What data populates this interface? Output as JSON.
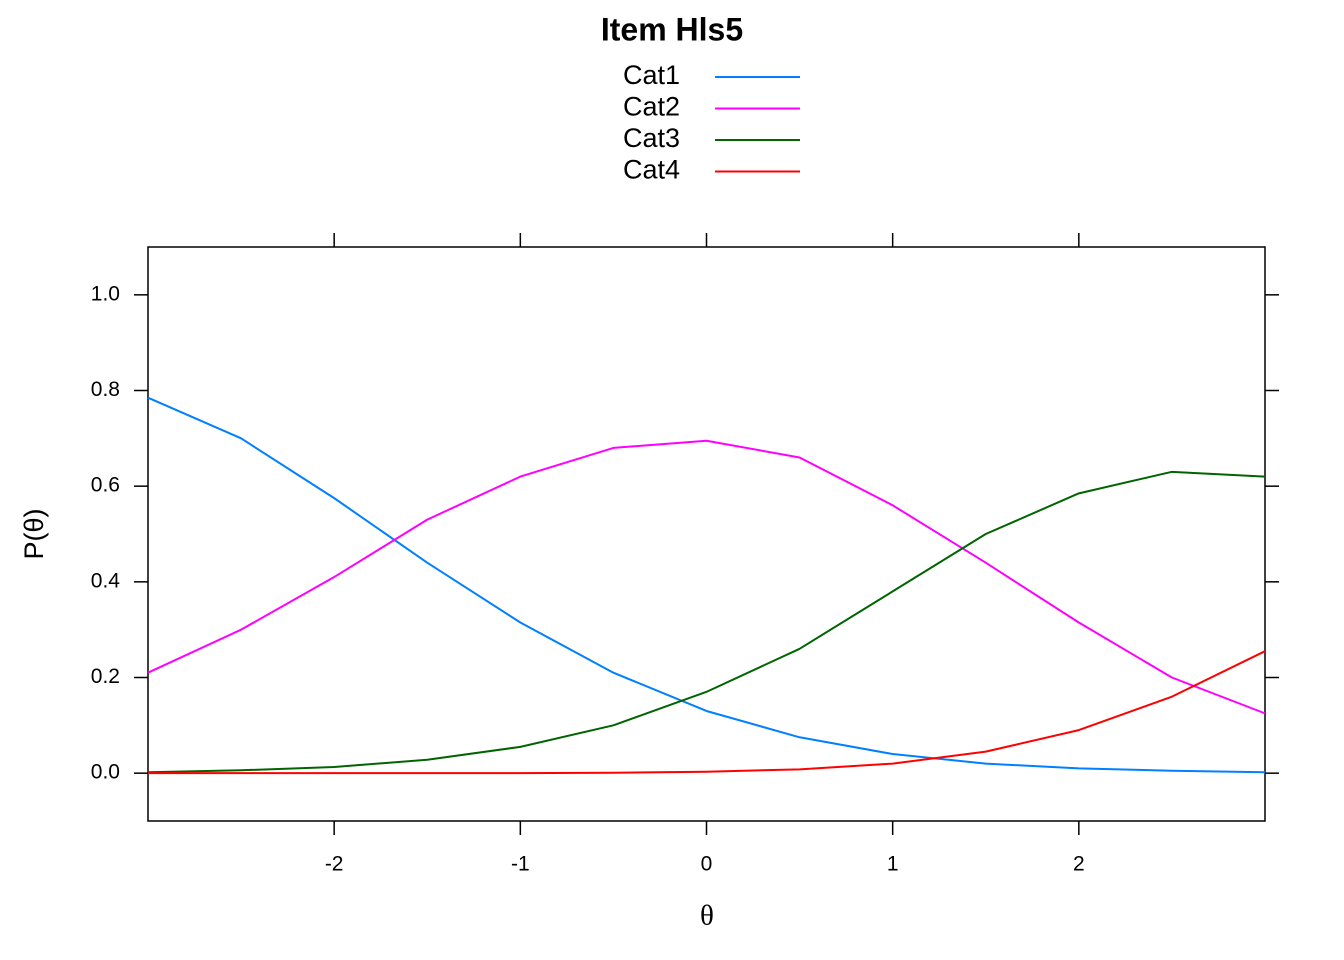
{
  "chart_data": {
    "type": "line",
    "title": "Item Hls5",
    "xlabel": "θ",
    "ylabel": "P(θ)",
    "x": [
      -3,
      -2.5,
      -2,
      -1.5,
      -1,
      -0.5,
      0,
      0.5,
      1,
      1.5,
      2,
      2.5,
      3
    ],
    "series": [
      {
        "name": "Cat1",
        "color": "#0080ff",
        "values": [
          0.785,
          0.7,
          0.575,
          0.44,
          0.315,
          0.21,
          0.13,
          0.075,
          0.04,
          0.02,
          0.01,
          0.005,
          0.002
        ]
      },
      {
        "name": "Cat2",
        "color": "#ff00ff",
        "values": [
          0.21,
          0.3,
          0.41,
          0.53,
          0.62,
          0.68,
          0.695,
          0.66,
          0.56,
          0.44,
          0.315,
          0.2,
          0.125
        ]
      },
      {
        "name": "Cat3",
        "color": "#006400",
        "values": [
          0.002,
          0.006,
          0.013,
          0.028,
          0.055,
          0.1,
          0.17,
          0.26,
          0.38,
          0.5,
          0.585,
          0.63,
          0.62
        ]
      },
      {
        "name": "Cat4",
        "color": "#ff0000",
        "values": [
          0,
          0,
          0,
          0,
          0,
          0.001,
          0.003,
          0.008,
          0.02,
          0.045,
          0.09,
          0.16,
          0.255
        ]
      }
    ],
    "xlim": [
      -3,
      3
    ],
    "ylim": [
      -0.1,
      1.1
    ],
    "xticks": [
      -2,
      -1,
      0,
      1,
      2
    ],
    "yticks": [
      {
        "value": 0,
        "label": "0.0"
      },
      0.2,
      0.4,
      0.6,
      0.8,
      {
        "value": 1,
        "label": "1.0"
      }
    ],
    "legend": "top"
  }
}
